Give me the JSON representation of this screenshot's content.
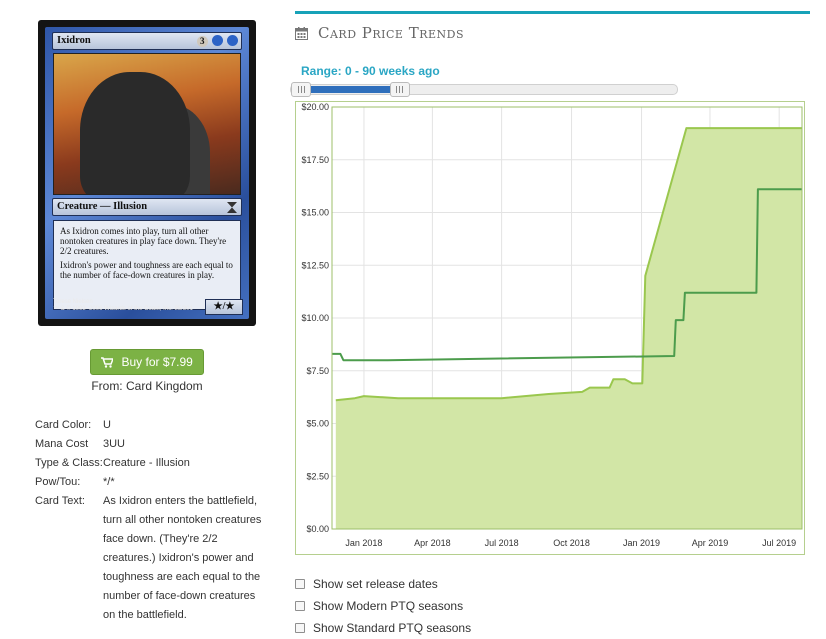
{
  "card": {
    "name": "Ixidron",
    "mana_symbol_text": "3",
    "type_line": "Creature — Illusion",
    "rules_text_1": "As Ixidron comes into play, turn all other nontoken creatures in play face down. They're 2/2 creatures.",
    "rules_text_2": "Ixidron's power and toughness are each equal to the number of face-down creatures in play.",
    "artist": "Terese Nielsen",
    "copyright": "™ & © 1993–2006 Wizards of the Coast, Inc. 85/301",
    "pt": "★/★"
  },
  "buy": {
    "label": "Buy for $7.99",
    "source": "From: Card Kingdom",
    "icon": "cart-icon"
  },
  "details": {
    "color_label": "Card Color:",
    "color_value": "U",
    "mana_label": "Mana Cost",
    "mana_value": "3UU",
    "type_label": "Type & Class:",
    "type_value": "Creature - Illusion",
    "pt_label": "Pow/Tou:",
    "pt_value": "*/*",
    "text_label": "Card Text:",
    "text_value": "As Ixidron enters the battlefield, turn all other nontoken creatures face down. (They're 2/2 creatures.) Ixidron's power and toughness are each equal to the number of face-down creatures on the battlefield."
  },
  "price_trends": {
    "title": "Card Price Trends",
    "icon": "calendar-icon",
    "range_label": "Range: 0 - 90 weeks ago",
    "range_selected_fraction": [
      0,
      0.27
    ]
  },
  "chart_data": {
    "type": "area",
    "x_unit": "date",
    "xlim": [
      "2017-11-20",
      "2019-07-31"
    ],
    "ylim": [
      0,
      20
    ],
    "y_ticks": [
      "$0.00",
      "$2.50",
      "$5.00",
      "$7.50",
      "$10.00",
      "$12.50",
      "$15.00",
      "$17.50",
      "$20.00"
    ],
    "x_ticks": [
      {
        "date": "2018-01-01",
        "label": "Jan 2018"
      },
      {
        "date": "2018-04-01",
        "label": "Apr 2018"
      },
      {
        "date": "2018-07-01",
        "label": "Jul 2018"
      },
      {
        "date": "2018-10-01",
        "label": "Oct 2018"
      },
      {
        "date": "2019-01-01",
        "label": "Jan 2019"
      },
      {
        "date": "2019-04-01",
        "label": "Apr 2019"
      },
      {
        "date": "2019-07-01",
        "label": "Jul 2019"
      }
    ],
    "grid": true,
    "series": [
      {
        "color": "#9ac74e",
        "fill": "#d2e6a6",
        "points": [
          [
            "2017-11-25",
            6.1
          ],
          [
            "2017-12-20",
            6.2
          ],
          [
            "2018-01-01",
            6.3
          ],
          [
            "2018-02-15",
            6.2
          ],
          [
            "2018-07-01",
            6.2
          ],
          [
            "2018-09-01",
            6.4
          ],
          [
            "2018-10-15",
            6.5
          ],
          [
            "2018-10-25",
            6.7
          ],
          [
            "2018-11-20",
            6.7
          ],
          [
            "2018-11-25",
            7.1
          ],
          [
            "2018-12-10",
            7.1
          ],
          [
            "2018-12-20",
            6.9
          ],
          [
            "2018-12-28",
            6.9
          ],
          [
            "2019-01-02",
            6.9
          ],
          [
            "2019-01-06",
            12.0
          ],
          [
            "2019-03-01",
            19.0
          ],
          [
            "2019-07-31",
            19.0
          ]
        ]
      },
      {
        "color": "#4c9c4c",
        "points": [
          [
            "2017-11-20",
            8.3
          ],
          [
            "2017-12-01",
            8.3
          ],
          [
            "2017-12-05",
            8.0
          ],
          [
            "2018-02-01",
            8.0
          ],
          [
            "2019-02-13",
            8.2
          ],
          [
            "2019-02-15",
            9.9
          ],
          [
            "2019-02-25",
            9.9
          ],
          [
            "2019-02-27",
            11.2
          ],
          [
            "2019-06-01",
            11.2
          ],
          [
            "2019-06-03",
            16.1
          ],
          [
            "2019-07-31",
            16.1
          ]
        ]
      }
    ]
  },
  "options": [
    {
      "label": "Show set release dates"
    },
    {
      "label": "Show Modern PTQ seasons"
    },
    {
      "label": "Show Standard PTQ seasons"
    }
  ]
}
